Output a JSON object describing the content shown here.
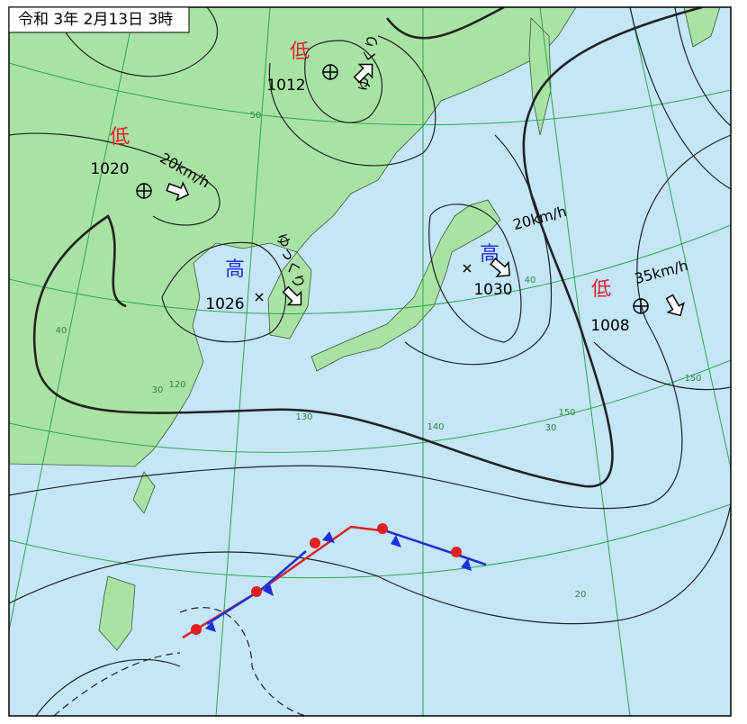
{
  "header": {
    "title": "令和 3年 2月13日 3時"
  },
  "systems": [
    {
      "type": "低",
      "pressure": "1012",
      "movement": "ゆっくり"
    },
    {
      "type": "低",
      "pressure": "1020",
      "movement": "20km/h"
    },
    {
      "type": "高",
      "pressure": "1026",
      "movement": "ゆっくり"
    },
    {
      "type": "高",
      "pressure": "1030",
      "movement": "20km/h"
    },
    {
      "type": "低",
      "pressure": "1008",
      "movement": "35km/h"
    }
  ],
  "grid_labels": [
    "50",
    "40",
    "30",
    "20",
    "40",
    "30",
    "120",
    "130",
    "140",
    "150",
    "150"
  ]
}
